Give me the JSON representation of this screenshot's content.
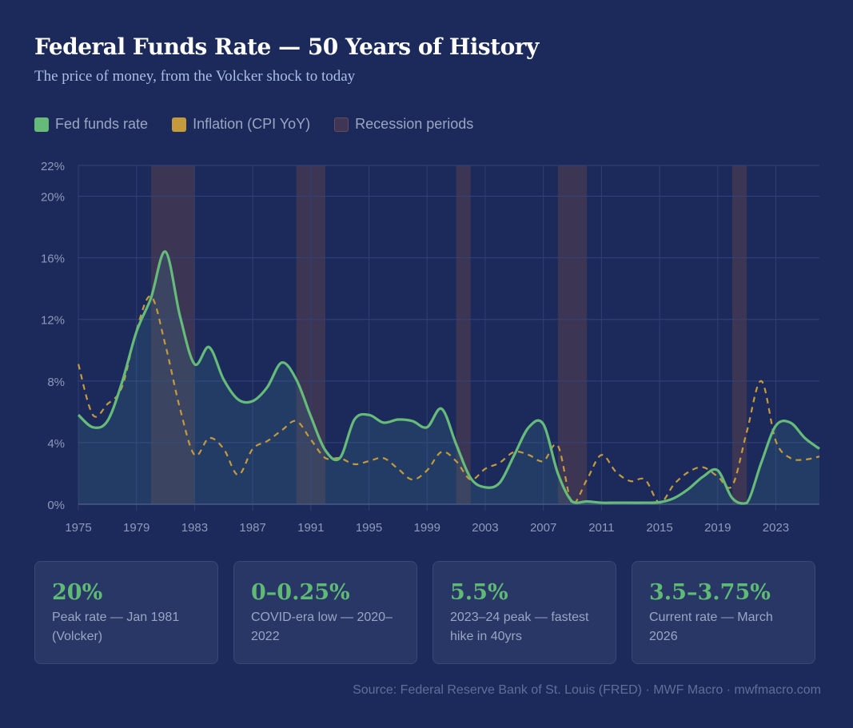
{
  "header": {
    "title": "Federal Funds Rate — 50 Years of History",
    "subtitle": "The price of money, from the Volcker shock to today"
  },
  "legend": [
    {
      "label": "Fed funds rate",
      "color": "#66bb7a"
    },
    {
      "label": "Inflation (CPI YoY)",
      "color": "#c49a3c"
    },
    {
      "label": "Recession periods",
      "color": "#3e3654"
    }
  ],
  "chart_data": {
    "type": "line",
    "title": "",
    "xlabel": "",
    "ylabel": "",
    "xlim": [
      1975,
      2026
    ],
    "ylim": [
      0,
      22
    ],
    "grid": true,
    "legend_placement": "top-left",
    "y_ticks": [
      "0%",
      "4%",
      "8%",
      "12%",
      "16%",
      "20%",
      "22%"
    ],
    "y_tick_values": [
      0,
      4,
      8,
      12,
      16,
      20,
      22
    ],
    "x_ticks": [
      "1975",
      "1979",
      "1983",
      "1987",
      "1991",
      "1995",
      "1999",
      "2003",
      "2007",
      "2011",
      "2015",
      "2019",
      "2023"
    ],
    "x": [
      1975,
      1976,
      1977,
      1978,
      1979,
      1980,
      1981,
      1982,
      1983,
      1984,
      1985,
      1986,
      1987,
      1988,
      1989,
      1990,
      1991,
      1992,
      1993,
      1994,
      1995,
      1996,
      1997,
      1998,
      1999,
      2000,
      2001,
      2002,
      2003,
      2004,
      2005,
      2006,
      2007,
      2008,
      2009,
      2010,
      2011,
      2012,
      2013,
      2014,
      2015,
      2016,
      2017,
      2018,
      2019,
      2020,
      2021,
      2022,
      2023,
      2024,
      2025,
      2026
    ],
    "series": [
      {
        "name": "Fed funds rate",
        "color": "#66bb7a",
        "style": "solid",
        "filled": true,
        "values": [
          5.8,
          5.0,
          5.4,
          7.9,
          11.2,
          13.4,
          16.4,
          12.2,
          9.1,
          10.2,
          8.1,
          6.8,
          6.7,
          7.6,
          9.2,
          8.1,
          5.7,
          3.5,
          3.0,
          5.5,
          5.8,
          5.3,
          5.5,
          5.4,
          5.0,
          6.2,
          3.9,
          1.7,
          1.1,
          1.4,
          3.2,
          5.0,
          5.2,
          2.0,
          0.16,
          0.18,
          0.1,
          0.1,
          0.1,
          0.1,
          0.13,
          0.4,
          1.0,
          1.8,
          2.2,
          0.4,
          0.08,
          2.7,
          5.1,
          5.3,
          4.3,
          3.6
        ]
      },
      {
        "name": "Inflation (CPI YoY)",
        "color": "#c49a3c",
        "style": "dashed",
        "values": [
          9.1,
          5.8,
          6.5,
          7.6,
          11.3,
          13.5,
          10.3,
          6.2,
          3.2,
          4.3,
          3.6,
          1.9,
          3.6,
          4.1,
          4.8,
          5.4,
          4.2,
          3.0,
          3.0,
          2.6,
          2.8,
          3.0,
          2.3,
          1.6,
          2.2,
          3.4,
          2.8,
          1.6,
          2.3,
          2.7,
          3.4,
          3.2,
          2.8,
          3.8,
          0.0,
          1.6,
          3.2,
          2.1,
          1.5,
          1.6,
          0.1,
          1.3,
          2.1,
          2.4,
          1.8,
          1.2,
          4.7,
          8.0,
          4.1,
          3.0,
          2.9,
          3.1
        ]
      }
    ],
    "recessions": [
      [
        1980,
        1983
      ],
      [
        1990,
        1992
      ],
      [
        2001,
        2002
      ],
      [
        2008,
        2010
      ],
      [
        2020,
        2021
      ]
    ],
    "recession_color": "#3e3654"
  },
  "cards": [
    {
      "value": "20%",
      "label": "Peak rate — Jan 1981 (Volcker)"
    },
    {
      "value": "0–0.25%",
      "label": "COVID-era low — 2020–2022"
    },
    {
      "value": "5.5%",
      "label": "2023–24 peak — fastest hike in 40yrs"
    },
    {
      "value": "3.5–3.75%",
      "label": "Current rate — March 2026"
    }
  ],
  "footer": {
    "source": "Source: Federal Reserve Bank of St. Louis (FRED) · MWF Macro · mwfmacro.com"
  }
}
